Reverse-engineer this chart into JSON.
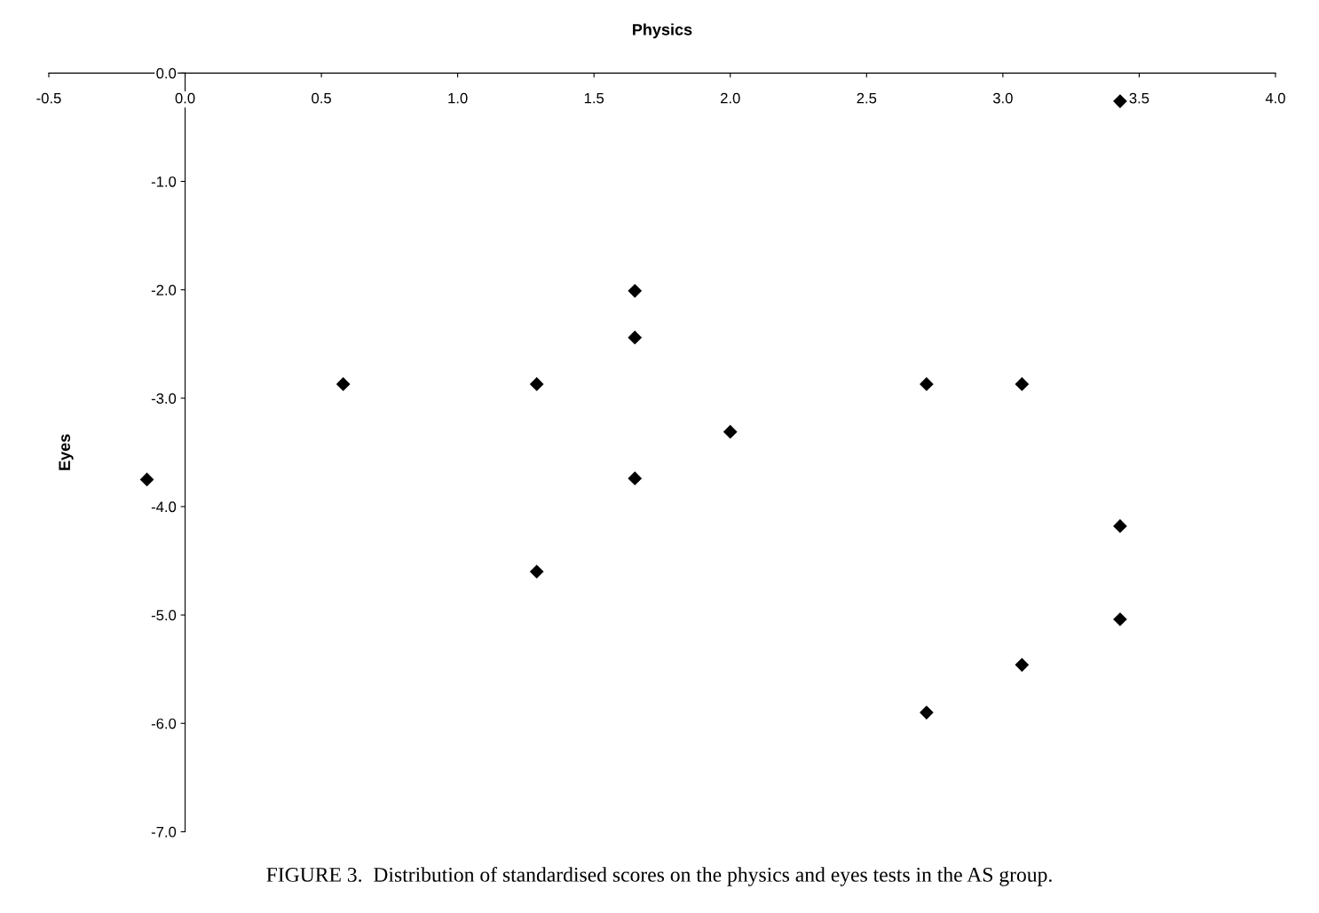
{
  "chart_data": {
    "type": "scatter",
    "xlabel": "Physics",
    "ylabel": "Eyes",
    "x": [
      -0.14,
      0.58,
      1.29,
      1.29,
      1.65,
      1.65,
      1.65,
      2.0,
      2.72,
      3.07,
      3.07,
      2.72,
      3.43,
      3.43,
      3.43
    ],
    "values": [
      -3.75,
      -2.87,
      -2.87,
      -4.6,
      -2.01,
      -2.44,
      -3.74,
      -3.31,
      -2.87,
      -2.87,
      -5.46,
      -5.9,
      -0.26,
      -4.18,
      -5.04
    ],
    "color": "#000000",
    "marker": "diamond",
    "grid": false,
    "xlim": [
      -0.5,
      4.0
    ],
    "ylim": [
      -7.0,
      0.0
    ],
    "xticks": [
      {
        "value": -0.5,
        "label": "-0.5"
      },
      {
        "value": 0,
        "label": "0.0"
      },
      {
        "value": 0.5,
        "label": "0.5"
      },
      {
        "value": 1.0,
        "label": "1.0"
      },
      {
        "value": 1.5,
        "label": "1.5"
      },
      {
        "value": 2.0,
        "label": "2.0"
      },
      {
        "value": 2.5,
        "label": "2.5"
      },
      {
        "value": 3.0,
        "label": "3.0"
      },
      {
        "value": 3.5,
        "label": "3.5"
      },
      {
        "value": 4.0,
        "label": "4.0"
      }
    ],
    "yticks": [
      {
        "value": 0,
        "label": "0.0"
      },
      {
        "value": -1,
        "label": "-1.0"
      },
      {
        "value": -2,
        "label": "-2.0"
      },
      {
        "value": -3,
        "label": "-3.0"
      },
      {
        "value": -4,
        "label": "-4.0"
      },
      {
        "value": -5,
        "label": "-5.0"
      },
      {
        "value": -6,
        "label": "-6.0"
      },
      {
        "value": -7,
        "label": "-7.0"
      }
    ],
    "annotations": [
      "FIGURE 3.  Distribution of standardised scores on the physics and eyes tests in the AS group."
    ]
  }
}
